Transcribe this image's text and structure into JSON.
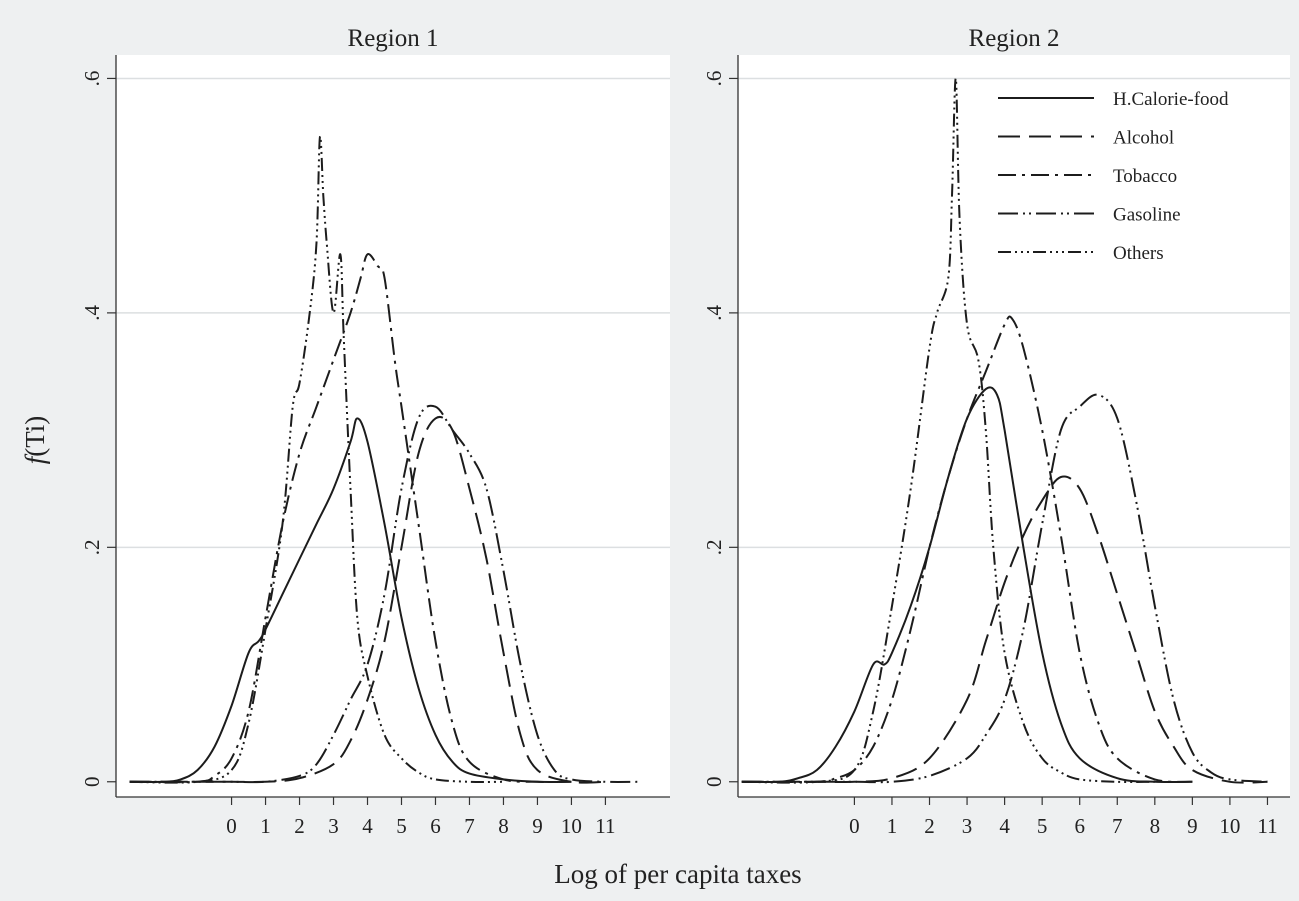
{
  "figure": {
    "xlabel": "Log of per capita taxes",
    "ylabel_prefix": "f",
    "ylabel_suffix": "(Ti)"
  },
  "legend": {
    "placement": "top-right of Region 2 panel",
    "entries": [
      {
        "name": "H.Calorie-food",
        "dash": "solid"
      },
      {
        "name": "Alcohol",
        "dash": "long-dash"
      },
      {
        "name": "Tobacco",
        "dash": "dash-dot"
      },
      {
        "name": "Gasoline",
        "dash": "long-dash-dot-dot"
      },
      {
        "name": "Others",
        "dash": "dash-dot-dot-dot"
      }
    ]
  },
  "chart_data": [
    {
      "type": "line",
      "title": "Region 1",
      "xlabel": "Log of per capita taxes",
      "ylabel": "f(Ti)",
      "xlim": [
        -3.4,
        12.9
      ],
      "ylim": [
        -0.013,
        0.62
      ],
      "xticks": [
        "0",
        "1",
        "2",
        "3",
        "4",
        "5",
        "6",
        "7",
        "8",
        "9",
        "10",
        "11"
      ],
      "yticks": [
        "0",
        ".2",
        ".4",
        ".6"
      ],
      "grid": "horizontal",
      "series": [
        {
          "name": "H.Calorie-food",
          "x": [
            -3,
            -2,
            -1.5,
            -1,
            -0.5,
            0,
            0.5,
            0.8,
            1,
            1.5,
            2,
            2.5,
            3,
            3.5,
            3.7,
            4,
            4.5,
            5,
            5.5,
            6,
            6.5,
            7,
            8,
            9,
            10
          ],
          "y": [
            0,
            0,
            0.002,
            0.01,
            0.03,
            0.065,
            0.11,
            0.12,
            0.13,
            0.16,
            0.19,
            0.22,
            0.25,
            0.29,
            0.31,
            0.29,
            0.22,
            0.14,
            0.08,
            0.04,
            0.017,
            0.007,
            0.002,
            0,
            0
          ]
        },
        {
          "name": "Alcohol",
          "x": [
            -3,
            -1,
            0,
            1,
            2,
            3,
            3.5,
            4,
            4.5,
            5,
            5.5,
            6,
            6.5,
            7,
            7.5,
            8,
            8.5,
            9,
            10,
            11
          ],
          "y": [
            0,
            0,
            0,
            0,
            0.003,
            0.015,
            0.035,
            0.07,
            0.12,
            0.2,
            0.28,
            0.31,
            0.3,
            0.25,
            0.19,
            0.11,
            0.04,
            0.01,
            0,
            0
          ]
        },
        {
          "name": "Tobacco",
          "x": [
            -3,
            -1,
            -0.5,
            0,
            0.5,
            1,
            1.5,
            2,
            2.5,
            3,
            3.5,
            3.8,
            4,
            4.3,
            4.5,
            4.8,
            5,
            5.5,
            6,
            6.5,
            7,
            8,
            9,
            10
          ],
          "y": [
            0,
            0,
            0.005,
            0.02,
            0.06,
            0.14,
            0.22,
            0.28,
            0.32,
            0.36,
            0.4,
            0.43,
            0.45,
            0.44,
            0.43,
            0.36,
            0.32,
            0.22,
            0.12,
            0.05,
            0.017,
            0.002,
            0,
            0
          ]
        },
        {
          "name": "Gasoline",
          "x": [
            -3,
            -1,
            0,
            1,
            2,
            2.5,
            3,
            3.5,
            4,
            4.5,
            5,
            5.5,
            6,
            6.5,
            7,
            7.5,
            8,
            8.5,
            9,
            9.5,
            10,
            11,
            12
          ],
          "y": [
            0,
            0,
            0,
            0,
            0.005,
            0.015,
            0.04,
            0.07,
            0.1,
            0.16,
            0.25,
            0.31,
            0.32,
            0.3,
            0.28,
            0.25,
            0.18,
            0.1,
            0.04,
            0.01,
            0.002,
            0,
            0
          ]
        },
        {
          "name": "Others",
          "x": [
            -3,
            -1,
            0,
            0.5,
            1,
            1.5,
            1.8,
            2,
            2.3,
            2.5,
            2.6,
            2.7,
            2.8,
            3,
            3.2,
            3.3,
            3.5,
            3.7,
            4,
            4.5,
            5,
            5.5,
            6,
            7,
            8
          ],
          "y": [
            0,
            0,
            0.01,
            0.05,
            0.13,
            0.22,
            0.32,
            0.34,
            0.4,
            0.46,
            0.55,
            0.5,
            0.46,
            0.4,
            0.45,
            0.38,
            0.25,
            0.14,
            0.09,
            0.04,
            0.02,
            0.008,
            0.002,
            0,
            0
          ]
        }
      ]
    },
    {
      "type": "line",
      "title": "Region 2",
      "xlabel": "Log of per capita taxes",
      "ylabel": "f(Ti)",
      "xlim": [
        -3.1,
        11.6
      ],
      "ylim": [
        -0.013,
        0.62
      ],
      "xticks": [
        "0",
        "1",
        "2",
        "3",
        "4",
        "5",
        "6",
        "7",
        "8",
        "9",
        "10",
        "11"
      ],
      "yticks": [
        "0",
        ".2",
        ".4",
        ".6"
      ],
      "grid": "horizontal",
      "series": [
        {
          "name": "H.Calorie-food",
          "x": [
            -3,
            -2,
            -1.5,
            -1,
            -0.5,
            0,
            0.5,
            0.8,
            1,
            1.5,
            2,
            2.5,
            3,
            3.5,
            3.8,
            4,
            4.5,
            5,
            5.5,
            6,
            7,
            8,
            9
          ],
          "y": [
            0,
            0,
            0.003,
            0.01,
            0.03,
            0.06,
            0.1,
            0.1,
            0.11,
            0.15,
            0.2,
            0.26,
            0.31,
            0.335,
            0.33,
            0.3,
            0.2,
            0.11,
            0.05,
            0.02,
            0.003,
            0,
            0
          ]
        },
        {
          "name": "Alcohol",
          "x": [
            -3,
            -1,
            0,
            1,
            2,
            3,
            3.5,
            4,
            4.5,
            5,
            5.5,
            6,
            6.5,
            7,
            7.5,
            8,
            8.5,
            9,
            10,
            11
          ],
          "y": [
            0,
            0,
            0,
            0.003,
            0.02,
            0.07,
            0.12,
            0.17,
            0.21,
            0.24,
            0.26,
            0.25,
            0.21,
            0.16,
            0.11,
            0.06,
            0.03,
            0.01,
            0,
            0
          ]
        },
        {
          "name": "Tobacco",
          "x": [
            -3,
            -1,
            -0.5,
            0,
            0.5,
            1,
            1.5,
            2,
            2.5,
            3,
            3.5,
            4,
            4.2,
            4.5,
            5,
            5.5,
            6,
            6.5,
            7,
            8,
            9
          ],
          "y": [
            0,
            0,
            0.003,
            0.01,
            0.03,
            0.07,
            0.13,
            0.2,
            0.26,
            0.31,
            0.35,
            0.39,
            0.395,
            0.37,
            0.3,
            0.21,
            0.11,
            0.05,
            0.02,
            0.002,
            0
          ]
        },
        {
          "name": "Gasoline",
          "x": [
            -3,
            -1,
            0,
            1,
            2,
            3,
            3.5,
            4,
            4.5,
            5,
            5.5,
            6,
            6.5,
            7,
            7.5,
            8,
            8.5,
            9,
            9.5,
            10,
            11
          ],
          "y": [
            0,
            0,
            0,
            0,
            0.005,
            0.02,
            0.04,
            0.07,
            0.13,
            0.22,
            0.3,
            0.32,
            0.33,
            0.31,
            0.24,
            0.15,
            0.07,
            0.025,
            0.008,
            0.002,
            0
          ]
        },
        {
          "name": "Others",
          "x": [
            -3,
            -1,
            0,
            0.5,
            1,
            1.5,
            2,
            2.2,
            2.5,
            2.6,
            2.7,
            2.8,
            3,
            3.3,
            3.5,
            3.7,
            4,
            4.5,
            5,
            5.5,
            6,
            7,
            8
          ],
          "y": [
            0,
            0,
            0.01,
            0.06,
            0.15,
            0.25,
            0.37,
            0.4,
            0.43,
            0.5,
            0.6,
            0.48,
            0.39,
            0.36,
            0.3,
            0.2,
            0.11,
            0.05,
            0.02,
            0.008,
            0.002,
            0,
            0
          ]
        }
      ]
    }
  ]
}
